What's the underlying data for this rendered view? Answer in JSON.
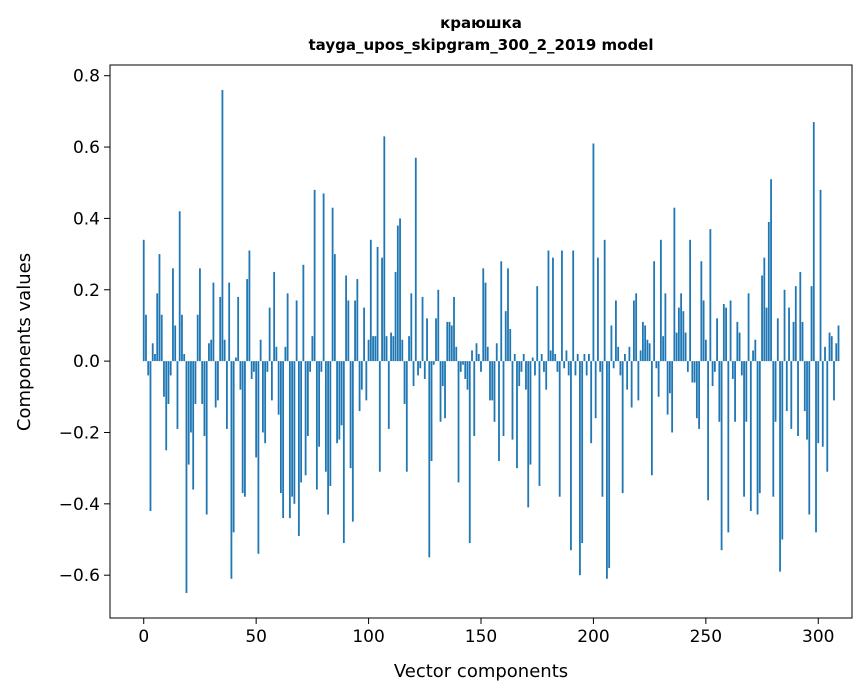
{
  "chart_data": {
    "type": "bar",
    "title_line1": "краюшка",
    "title_line2": "tayga_upos_skipgram_300_2_2019 model",
    "xlabel": "Vector components",
    "ylabel": "Components values",
    "xlim": [
      -15,
      315
    ],
    "ylim": [
      -0.72,
      0.83
    ],
    "xticks": [
      0,
      50,
      100,
      150,
      200,
      250,
      300
    ],
    "xtick_labels": [
      "0",
      "50",
      "100",
      "150",
      "200",
      "250",
      "300"
    ],
    "yticks": [
      -0.6,
      -0.4,
      -0.2,
      0.0,
      0.2,
      0.4,
      0.6,
      0.8
    ],
    "ytick_labels": [
      "−0.6",
      "−0.4",
      "−0.2",
      "0.0",
      "0.2",
      "0.4",
      "0.6",
      "0.8"
    ],
    "bar_color": "#1f77b4",
    "grid": false,
    "values": [
      0.34,
      0.13,
      -0.04,
      -0.42,
      0.05,
      0.02,
      0.19,
      0.3,
      0.13,
      -0.1,
      -0.25,
      -0.12,
      -0.04,
      0.26,
      0.1,
      -0.19,
      0.42,
      0.13,
      0.02,
      -0.65,
      -0.29,
      -0.2,
      -0.36,
      -0.12,
      0.13,
      0.26,
      -0.12,
      -0.21,
      -0.43,
      0.05,
      0.06,
      0.22,
      -0.13,
      -0.11,
      0.18,
      0.76,
      0.06,
      -0.19,
      0.22,
      -0.61,
      -0.48,
      0.01,
      0.18,
      -0.08,
      -0.37,
      -0.38,
      0.23,
      0.31,
      -0.05,
      -0.03,
      -0.27,
      -0.54,
      0.06,
      -0.2,
      -0.23,
      -0.03,
      0.15,
      -0.11,
      0.25,
      0.04,
      -0.15,
      -0.37,
      -0.44,
      0.04,
      0.19,
      -0.44,
      -0.38,
      -0.4,
      0.17,
      -0.49,
      -0.34,
      0.27,
      -0.32,
      -0.21,
      -0.03,
      0.07,
      0.48,
      -0.36,
      -0.24,
      -0.03,
      0.47,
      -0.31,
      -0.43,
      -0.35,
      0.43,
      0.3,
      -0.23,
      -0.22,
      -0.18,
      -0.51,
      0.24,
      0.17,
      -0.3,
      -0.45,
      0.17,
      0.23,
      -0.14,
      -0.08,
      0.15,
      -0.11,
      0.06,
      0.34,
      0.07,
      0.07,
      0.32,
      -0.31,
      0.29,
      0.63,
      0.07,
      -0.19,
      0.08,
      0.07,
      0.25,
      0.38,
      0.4,
      0.06,
      -0.12,
      -0.31,
      0.07,
      0.19,
      -0.07,
      0.57,
      -0.04,
      -0.02,
      0.18,
      -0.05,
      0.12,
      -0.55,
      -0.28,
      -0.01,
      0.12,
      0.2,
      -0.17,
      -0.07,
      -0.16,
      0.11,
      0.11,
      0.1,
      0.18,
      0.04,
      -0.34,
      -0.03,
      -0.01,
      -0.05,
      -0.08,
      -0.51,
      0.03,
      -0.21,
      0.05,
      0.02,
      -0.03,
      0.26,
      0.22,
      0.04,
      -0.11,
      -0.11,
      -0.17,
      0.05,
      -0.28,
      0.28,
      -0.21,
      0.14,
      0.26,
      0.09,
      -0.22,
      0.02,
      -0.3,
      -0.07,
      -0.03,
      0.02,
      -0.08,
      -0.41,
      -0.29,
      0.01,
      -0.04,
      0.21,
      -0.35,
      0.02,
      -0.03,
      -0.08,
      0.31,
      0.03,
      0.29,
      0.02,
      -0.03,
      -0.38,
      0.31,
      -0.02,
      0.03,
      -0.04,
      -0.53,
      0.31,
      -0.04,
      0.02,
      -0.6,
      -0.51,
      0.02,
      -0.04,
      0.02,
      -0.23,
      0.61,
      -0.16,
      0.29,
      -0.03,
      -0.38,
      0.34,
      -0.61,
      -0.58,
      0.1,
      -0.02,
      0.17,
      0.04,
      -0.04,
      -0.37,
      0.02,
      -0.08,
      0.04,
      -0.13,
      0.17,
      0.19,
      -0.11,
      0.03,
      0.11,
      0.1,
      0.06,
      0.05,
      -0.32,
      0.28,
      -0.02,
      -0.1,
      0.34,
      0.07,
      0.19,
      -0.15,
      -0.09,
      -0.2,
      0.43,
      0.08,
      0.15,
      0.19,
      0.14,
      0.08,
      -0.03,
      0.34,
      -0.06,
      -0.06,
      -0.16,
      -0.19,
      0.28,
      0.17,
      0.06,
      -0.39,
      0.37,
      -0.07,
      -0.03,
      0.12,
      -0.17,
      -0.53,
      0.16,
      0.15,
      -0.48,
      0.17,
      -0.05,
      -0.17,
      0.11,
      0.08,
      -0.04,
      -0.38,
      -0.17,
      0.19,
      -0.42,
      0.03,
      0.06,
      -0.43,
      -0.37,
      0.24,
      0.29,
      0.15,
      0.39,
      0.51,
      -0.38,
      -0.17,
      0.12,
      -0.59,
      -0.5,
      0.2,
      -0.14,
      0.15,
      -0.19,
      0.11,
      0.21,
      -0.21,
      0.25,
      0.11,
      -0.14,
      -0.22,
      -0.43,
      0.21,
      0.67,
      -0.48,
      -0.23,
      0.48,
      -0.24,
      0.04,
      -0.31,
      0.08,
      0.07,
      -0.11,
      0.05,
      0.1
    ]
  }
}
